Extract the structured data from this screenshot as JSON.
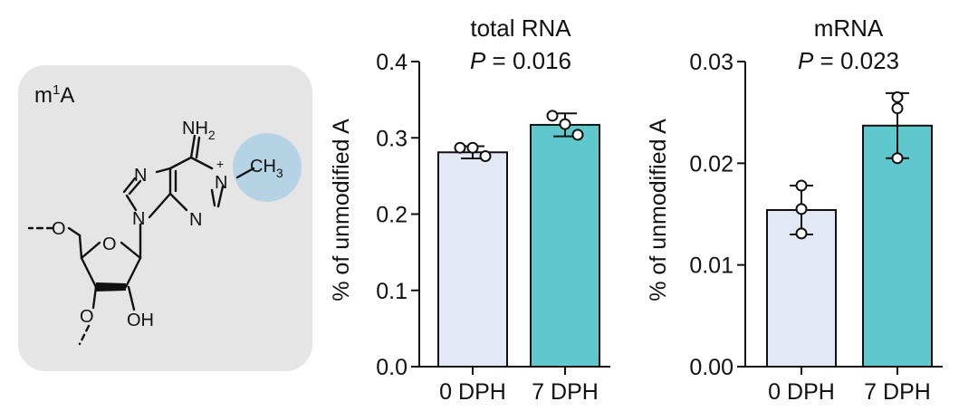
{
  "panel": {
    "label_base": "m",
    "label_sup": "1",
    "label_end": "A",
    "atoms": {
      "nh2_base": "NH",
      "nh2_sub": "2",
      "n1": "N",
      "plus": "+",
      "ch3_base": "CH",
      "ch3_sub": "3",
      "n7": "N",
      "n9": "N",
      "n3": "N",
      "o5": "O",
      "o4": "O",
      "o3": "O",
      "oh": "OH"
    }
  },
  "colors": {
    "panel_bg": "#e5e5e5",
    "methyl_highlight": "#b6d3e6",
    "bar_0dph": "#e2e8f4",
    "bar_7dph": "#5fc8cc",
    "ink": "#111111"
  },
  "chart_data": [
    {
      "type": "bar",
      "title": "total RNA",
      "stat_label": "P",
      "stat_text": " = 0.016",
      "ylabel": "% of unmodified A",
      "ylim": [
        0,
        0.4
      ],
      "yticks": [
        0.0,
        0.1,
        0.2,
        0.3,
        0.4
      ],
      "ytick_labels": [
        "0.0",
        "0.1",
        "0.2",
        "0.3",
        "0.4"
      ],
      "categories": [
        "0 DPH",
        "7 DPH"
      ],
      "values": [
        0.281,
        0.317
      ],
      "errors": [
        0.008,
        0.015
      ],
      "points": [
        [
          0.287,
          0.287,
          0.276
        ],
        [
          0.329,
          0.318,
          0.304
        ]
      ]
    },
    {
      "type": "bar",
      "title": "mRNA",
      "stat_label": "P",
      "stat_text": " = 0.023",
      "ylabel": "% of unmodified A",
      "ylim": [
        0,
        0.03
      ],
      "yticks": [
        0.0,
        0.01,
        0.02,
        0.03
      ],
      "ytick_labels": [
        "0.00",
        "0.01",
        "0.02",
        "0.03"
      ],
      "categories": [
        "0 DPH",
        "7 DPH"
      ],
      "values": [
        0.0154,
        0.0237
      ],
      "errors": [
        0.0024,
        0.0032
      ],
      "points": [
        [
          0.0178,
          0.0155,
          0.0131
        ],
        [
          0.0265,
          0.0254,
          0.0205
        ]
      ]
    }
  ]
}
